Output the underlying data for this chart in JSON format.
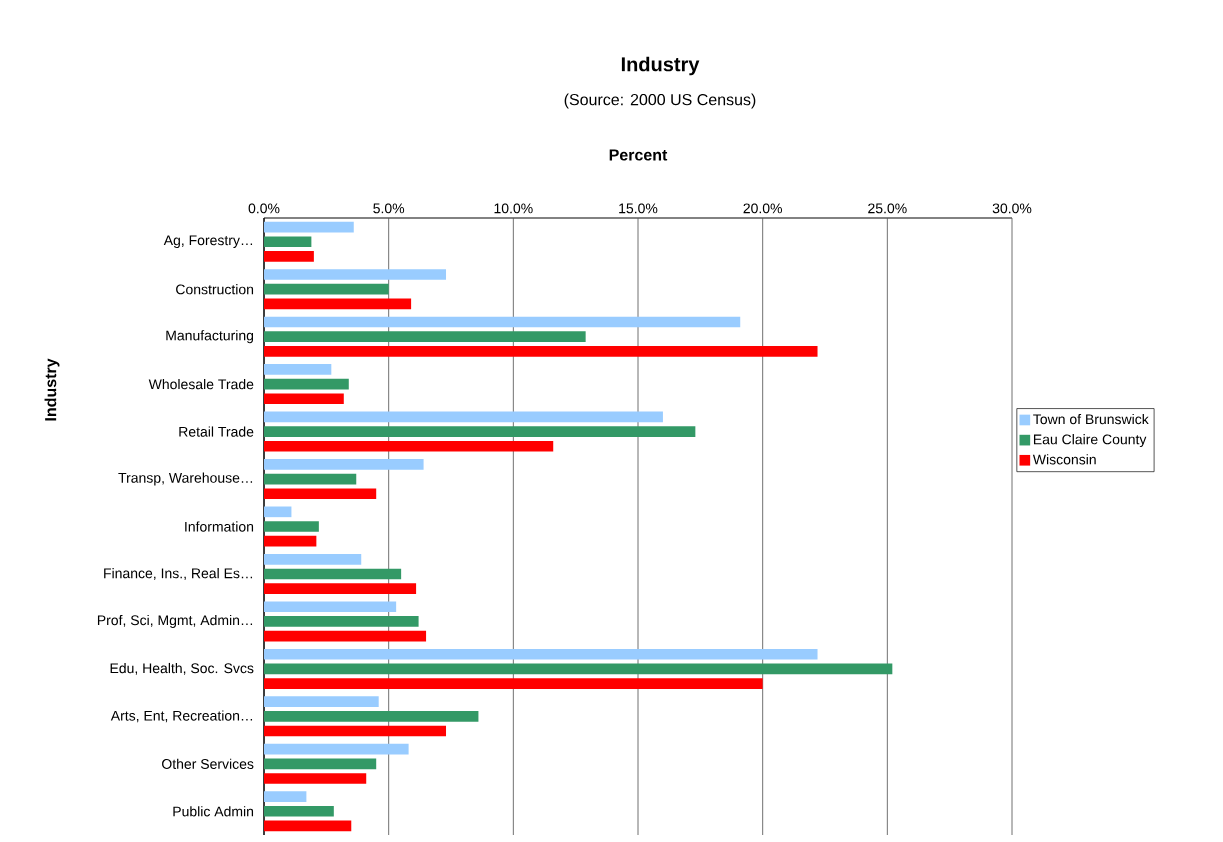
{
  "chart_data": {
    "type": "bar",
    "orientation": "horizontal",
    "title": "Industry",
    "subtitle": "(Source: 2000 US Census)",
    "xlabel": "Percent",
    "ylabel": "Industry",
    "categories": [
      "Ag, Forestry…",
      "Construction",
      "Manufacturing",
      "Wholesale Trade",
      "Retail Trade",
      "Transp, Warehouse…",
      "Information",
      "Finance, Ins., Real Es…",
      "Prof, Sci, Mgmt, Admin…",
      "Edu, Health, Soc. Svcs",
      "Arts, Ent, Recreation…",
      "Other Services",
      "Public Admin"
    ],
    "series": [
      {
        "name": "Town of Brunswick",
        "color": "#99ccff",
        "values": [
          3.6,
          7.3,
          19.1,
          2.7,
          16.0,
          6.4,
          1.1,
          3.9,
          5.3,
          22.2,
          4.6,
          5.8,
          1.7
        ]
      },
      {
        "name": "Eau Claire County",
        "color": "#339966",
        "values": [
          1.9,
          5.0,
          12.9,
          3.4,
          17.3,
          3.7,
          2.2,
          5.5,
          6.2,
          25.2,
          8.6,
          4.5,
          2.8
        ]
      },
      {
        "name": "Wisconsin",
        "color": "#ff0000",
        "values": [
          2.0,
          5.9,
          22.2,
          3.2,
          11.6,
          4.5,
          2.1,
          6.1,
          6.5,
          20.0,
          7.3,
          4.1,
          3.5
        ]
      }
    ],
    "xlim": [
      0,
      30
    ],
    "xticks": [
      {
        "value": 0,
        "label": "0.0%"
      },
      {
        "value": 5,
        "label": "5.0%"
      },
      {
        "value": 10,
        "label": "10.0%"
      },
      {
        "value": 15,
        "label": "15.0%"
      },
      {
        "value": 20,
        "label": "20.0%"
      },
      {
        "value": 25,
        "label": "25.0%"
      },
      {
        "value": 30,
        "label": "30.0%"
      }
    ],
    "grid": "x",
    "legend": "right"
  }
}
